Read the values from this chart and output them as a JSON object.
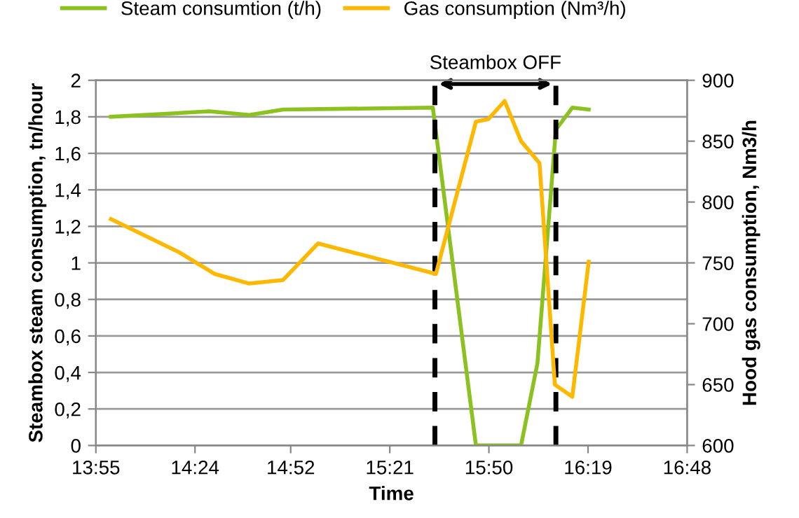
{
  "chart_data": {
    "type": "line",
    "xlabel": "Time",
    "ylabel": "Steambox steam consumption, tn/hour",
    "y2label": "Hood gas consumption, Nm3/h",
    "series": [
      {
        "name": "Steam consumtion (t/h)",
        "color": "#8cc21f",
        "x": [
          13.99,
          14.47,
          14.665,
          14.83,
          15.56,
          15.77,
          15.99,
          16.07,
          16.16,
          16.24,
          16.32
        ],
        "values": [
          1.8,
          1.83,
          1.81,
          1.84,
          1.85,
          0,
          0,
          0.45,
          1.73,
          1.85,
          1.84
        ]
      },
      {
        "name": "Gas consumption (Nm³/h)",
        "color": "#ffb800",
        "axis": "y2",
        "x": [
          13.99,
          14.32,
          14.495,
          14.665,
          14.83,
          15.0,
          15.575,
          15.77,
          15.83,
          15.91,
          15.99,
          16.08,
          16.155,
          16.24,
          16.32
        ],
        "values": [
          786,
          759,
          741,
          733,
          736,
          766,
          741,
          866,
          868,
          883,
          850,
          832,
          650,
          640,
          751
        ]
      }
    ],
    "xlim": [
      13.9167,
      16.8
    ],
    "xticks": [
      {
        "value": 13.9167,
        "label": "13:55"
      },
      {
        "value": 14.4,
        "label": "14:24"
      },
      {
        "value": 14.8667,
        "label": "14:52"
      },
      {
        "value": 15.35,
        "label": "15:21"
      },
      {
        "value": 15.8333,
        "label": "15:50"
      },
      {
        "value": 16.3167,
        "label": "16:19"
      },
      {
        "value": 16.8,
        "label": "16:48"
      }
    ],
    "ylim": [
      0,
      2
    ],
    "yticks": [
      0,
      {
        "value": 0.2,
        "label": "0,2"
      },
      {
        "value": 0.4,
        "label": "0,4"
      },
      {
        "value": 0.6,
        "label": "0,6"
      },
      {
        "value": 0.8,
        "label": "0,8"
      },
      1,
      {
        "value": 1.2,
        "label": "1,2"
      },
      {
        "value": 1.4,
        "label": "1,4"
      },
      {
        "value": 1.6,
        "label": "1,6"
      },
      {
        "value": 1.8,
        "label": "1,8"
      },
      2
    ],
    "y2lim": [
      600,
      900
    ],
    "y2ticks": [
      600,
      650,
      700,
      750,
      800,
      850,
      900
    ],
    "ref_lines": [
      {
        "axis": "x",
        "value": 15.57,
        "color": "#000000",
        "line_style": "dashed"
      },
      {
        "axis": "x",
        "value": 16.16,
        "color": "#000000",
        "line_style": "dashed"
      }
    ],
    "annotations": [
      "Steambox OFF"
    ],
    "grid": "y",
    "legend": "top",
    "marker": "none",
    "line_style": "solid"
  }
}
